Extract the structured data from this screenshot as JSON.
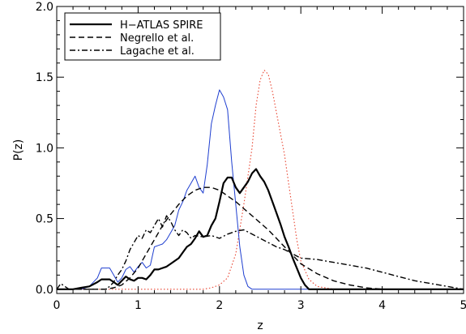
{
  "chart_data": {
    "type": "line",
    "title": "",
    "xlabel": "z",
    "ylabel": "P(z)",
    "xlim": [
      0,
      5
    ],
    "ylim": [
      -0.03,
      2.0
    ],
    "x_ticks": [
      "0",
      "1",
      "2",
      "3",
      "4",
      "5"
    ],
    "y_ticks": [
      "0.0",
      "0.5",
      "1.0",
      "1.5",
      "2.0"
    ],
    "grid": false,
    "legend_position": "top-left",
    "legend": [
      {
        "label": "H−ATLAS SPIRE",
        "style": "solid-thick",
        "color": "#000000"
      },
      {
        "label": "Negrello et al.",
        "style": "dashed",
        "color": "#000000"
      },
      {
        "label": "Lagache et al.",
        "style": "dashdot",
        "color": "#000000"
      }
    ],
    "series": [
      {
        "name": "H−ATLAS SPIRE",
        "color": "#000000",
        "style": "solid-thick",
        "x": [
          0,
          0.1,
          0.2,
          0.3,
          0.4,
          0.5,
          0.55,
          0.6,
          0.65,
          0.7,
          0.75,
          0.8,
          0.85,
          0.9,
          0.95,
          1.0,
          1.05,
          1.1,
          1.15,
          1.2,
          1.25,
          1.3,
          1.35,
          1.4,
          1.45,
          1.5,
          1.55,
          1.6,
          1.65,
          1.7,
          1.75,
          1.8,
          1.85,
          1.9,
          1.95,
          2.0,
          2.05,
          2.1,
          2.15,
          2.2,
          2.25,
          2.3,
          2.35,
          2.4,
          2.45,
          2.5,
          2.55,
          2.6,
          2.65,
          2.7,
          2.75,
          2.8,
          2.85,
          2.9,
          2.95,
          3.0,
          3.05,
          3.1,
          3.15,
          3.2,
          3.3,
          3.5,
          4.0,
          5.0
        ],
        "y": [
          0.0,
          0.0,
          0.0,
          0.01,
          0.02,
          0.05,
          0.07,
          0.07,
          0.07,
          0.05,
          0.03,
          0.06,
          0.09,
          0.07,
          0.06,
          0.08,
          0.08,
          0.07,
          0.1,
          0.14,
          0.14,
          0.15,
          0.16,
          0.18,
          0.2,
          0.22,
          0.26,
          0.3,
          0.32,
          0.36,
          0.41,
          0.37,
          0.38,
          0.45,
          0.5,
          0.62,
          0.75,
          0.79,
          0.79,
          0.72,
          0.68,
          0.72,
          0.76,
          0.82,
          0.85,
          0.8,
          0.76,
          0.7,
          0.62,
          0.54,
          0.46,
          0.37,
          0.3,
          0.22,
          0.15,
          0.08,
          0.03,
          0.0,
          0.0,
          0.0,
          0.0,
          0.0,
          0.0,
          0.0
        ]
      },
      {
        "name": "Negrello et al.",
        "color": "#000000",
        "style": "dashed",
        "x": [
          0,
          0.2,
          0.4,
          0.6,
          0.7,
          0.8,
          0.9,
          1.0,
          1.1,
          1.2,
          1.3,
          1.4,
          1.5,
          1.6,
          1.7,
          1.8,
          1.9,
          2.0,
          2.1,
          2.2,
          2.3,
          2.4,
          2.5,
          2.6,
          2.7,
          2.8,
          2.9,
          3.0,
          3.2,
          3.4,
          3.6,
          3.8,
          4.0,
          4.5,
          5.0
        ],
        "y": [
          0.0,
          0.0,
          0.0,
          0.0,
          0.01,
          0.03,
          0.08,
          0.15,
          0.25,
          0.35,
          0.45,
          0.53,
          0.6,
          0.66,
          0.7,
          0.72,
          0.72,
          0.7,
          0.66,
          0.62,
          0.57,
          0.52,
          0.47,
          0.42,
          0.36,
          0.3,
          0.24,
          0.18,
          0.11,
          0.06,
          0.03,
          0.01,
          0.0,
          0.0,
          0.0
        ]
      },
      {
        "name": "Lagache et al.",
        "color": "#000000",
        "style": "dashdot",
        "x": [
          0,
          0.05,
          0.1,
          0.15,
          0.2,
          0.3,
          0.4,
          0.5,
          0.6,
          0.65,
          0.7,
          0.75,
          0.8,
          0.85,
          0.9,
          0.95,
          1.0,
          1.05,
          1.1,
          1.15,
          1.2,
          1.25,
          1.3,
          1.35,
          1.4,
          1.45,
          1.5,
          1.55,
          1.6,
          1.65,
          1.7,
          1.8,
          1.9,
          2.0,
          2.1,
          2.2,
          2.3,
          2.4,
          2.5,
          2.6,
          2.7,
          2.8,
          2.9,
          3.0,
          3.2,
          3.4,
          3.6,
          3.8,
          4.0,
          4.2,
          4.4,
          4.6,
          4.8,
          5.0
        ],
        "y": [
          0.0,
          0.04,
          0.02,
          0.0,
          0.0,
          0.0,
          0.0,
          0.0,
          0.0,
          0.02,
          0.05,
          0.1,
          0.14,
          0.2,
          0.28,
          0.33,
          0.38,
          0.36,
          0.42,
          0.4,
          0.45,
          0.5,
          0.44,
          0.52,
          0.48,
          0.42,
          0.38,
          0.42,
          0.4,
          0.36,
          0.38,
          0.37,
          0.38,
          0.36,
          0.39,
          0.41,
          0.42,
          0.39,
          0.36,
          0.33,
          0.3,
          0.28,
          0.25,
          0.22,
          0.21,
          0.19,
          0.17,
          0.15,
          0.12,
          0.09,
          0.06,
          0.04,
          0.02,
          0.0
        ]
      },
      {
        "name": "",
        "color": "#1f3fd0",
        "style": "solid-thin",
        "x": [
          0,
          0.3,
          0.4,
          0.5,
          0.55,
          0.6,
          0.65,
          0.7,
          0.75,
          0.8,
          0.85,
          0.9,
          0.95,
          1.0,
          1.05,
          1.1,
          1.15,
          1.2,
          1.25,
          1.3,
          1.35,
          1.4,
          1.45,
          1.5,
          1.55,
          1.6,
          1.65,
          1.7,
          1.75,
          1.8,
          1.85,
          1.9,
          1.95,
          2.0,
          2.05,
          2.1,
          2.15,
          2.2,
          2.25,
          2.3,
          2.35,
          2.4,
          2.5,
          2.6,
          3.0,
          4.0,
          5.0
        ],
        "y": [
          0.0,
          0.0,
          0.02,
          0.08,
          0.15,
          0.15,
          0.15,
          0.1,
          0.05,
          0.08,
          0.14,
          0.16,
          0.12,
          0.16,
          0.19,
          0.15,
          0.17,
          0.3,
          0.31,
          0.32,
          0.35,
          0.4,
          0.45,
          0.56,
          0.62,
          0.7,
          0.75,
          0.8,
          0.72,
          0.68,
          0.88,
          1.17,
          1.3,
          1.41,
          1.36,
          1.27,
          0.9,
          0.6,
          0.3,
          0.1,
          0.02,
          0.0,
          0.0,
          0.0,
          0.0,
          0.0,
          0.0
        ]
      },
      {
        "name": "",
        "color": "#e8422e",
        "style": "dotted",
        "x": [
          0,
          1.8,
          1.9,
          2.0,
          2.1,
          2.2,
          2.3,
          2.4,
          2.45,
          2.5,
          2.55,
          2.6,
          2.65,
          2.7,
          2.75,
          2.8,
          2.85,
          2.9,
          2.95,
          3.0,
          3.1,
          3.2,
          3.4,
          5.0
        ],
        "y": [
          0.0,
          0.0,
          0.01,
          0.03,
          0.08,
          0.25,
          0.6,
          1.0,
          1.3,
          1.48,
          1.55,
          1.52,
          1.4,
          1.25,
          1.1,
          0.95,
          0.75,
          0.55,
          0.35,
          0.2,
          0.07,
          0.02,
          0.0,
          0.0
        ]
      }
    ]
  }
}
